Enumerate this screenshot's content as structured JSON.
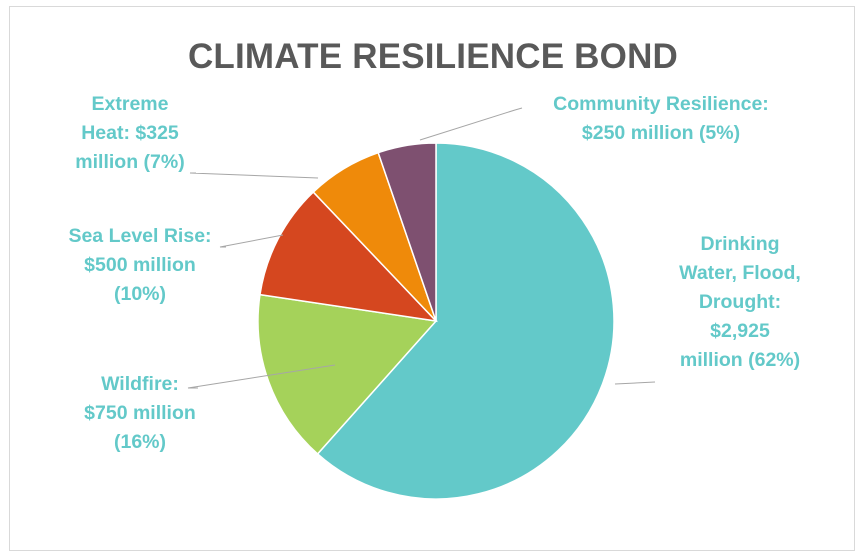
{
  "chart_data": {
    "type": "pie",
    "title": "CLIMATE RESILIENCE BOND",
    "slices": [
      {
        "name": "Drinking Water, Flood, Drought",
        "label_lines": [
          "Drinking",
          "Water, Flood,",
          "Drought:",
          "$2,925",
          "million (62%)"
        ],
        "value": 2925,
        "percent": 62,
        "color": "#63c9c9"
      },
      {
        "name": "Wildfire",
        "label_lines": [
          "Wildfire:",
          "$750 million",
          "(16%)"
        ],
        "value": 750,
        "percent": 16,
        "color": "#a5d25a"
      },
      {
        "name": "Sea Level Rise",
        "label_lines": [
          "Sea Level Rise:",
          "$500 million",
          "(10%)"
        ],
        "value": 500,
        "percent": 10,
        "color": "#d5471f"
      },
      {
        "name": "Extreme Heat",
        "label_lines": [
          "Extreme",
          "Heat: $325",
          "million (7%)"
        ],
        "value": 325,
        "percent": 7,
        "color": "#ef8a0a"
      },
      {
        "name": "Community Resilience",
        "label_lines": [
          "Community Resilience:",
          "$250 million (5%)"
        ],
        "value": 250,
        "percent": 5,
        "color": "#7e5070"
      }
    ],
    "label_color": "#63c9c9",
    "leader_line_color": "#a6a6a6",
    "title_color": "#595959"
  }
}
